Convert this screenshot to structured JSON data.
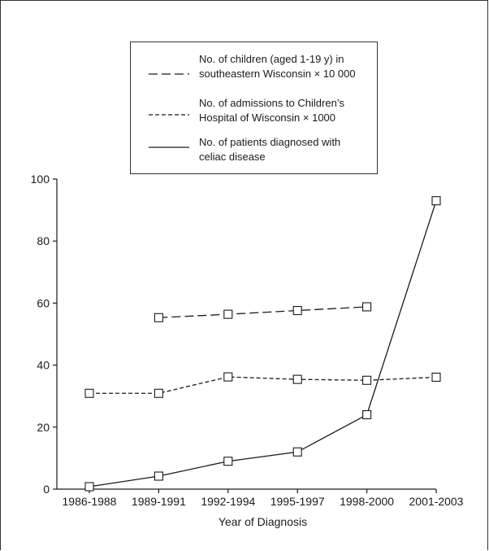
{
  "chart_data": {
    "type": "line",
    "title": "",
    "xlabel": "Year of Diagnosis",
    "ylabel": "",
    "categories": [
      "1986-1988",
      "1989-1991",
      "1992-1994",
      "1995-1997",
      "1998-2000",
      "2001-2003"
    ],
    "ylim": [
      0,
      100
    ],
    "yticks": [
      0,
      20,
      40,
      60,
      80,
      100
    ],
    "grid": false,
    "legend_position": "top-center",
    "series": [
      {
        "name": "No. of children (aged 1-19 y) in southeastern Wisconsin × 10 000",
        "name_lines": [
          "No. of children (aged 1-19 y) in",
          "southeastern Wisconsin × 10 000"
        ],
        "line_style": "long-dash",
        "values": [
          null,
          55.3,
          56.4,
          57.6,
          58.8,
          null
        ]
      },
      {
        "name": "No. of admissions to Children’s Hospital of Wisconsin × 1000",
        "name_lines": [
          "No. of admissions to Children’s",
          "Hospital of Wisconsin × 1000"
        ],
        "line_style": "short-dash",
        "values": [
          30.9,
          30.9,
          36.2,
          35.4,
          35.1,
          36.1
        ]
      },
      {
        "name": "No. of patients diagnosed with celiac disease",
        "name_lines": [
          "No. of patients diagnosed with",
          "celiac disease"
        ],
        "line_style": "solid",
        "values": [
          0.8,
          4.2,
          9.0,
          12.0,
          24.0,
          93.0
        ]
      }
    ],
    "colors": {
      "line": "#1a1a1a",
      "marker_fill": "#ffffff"
    }
  }
}
